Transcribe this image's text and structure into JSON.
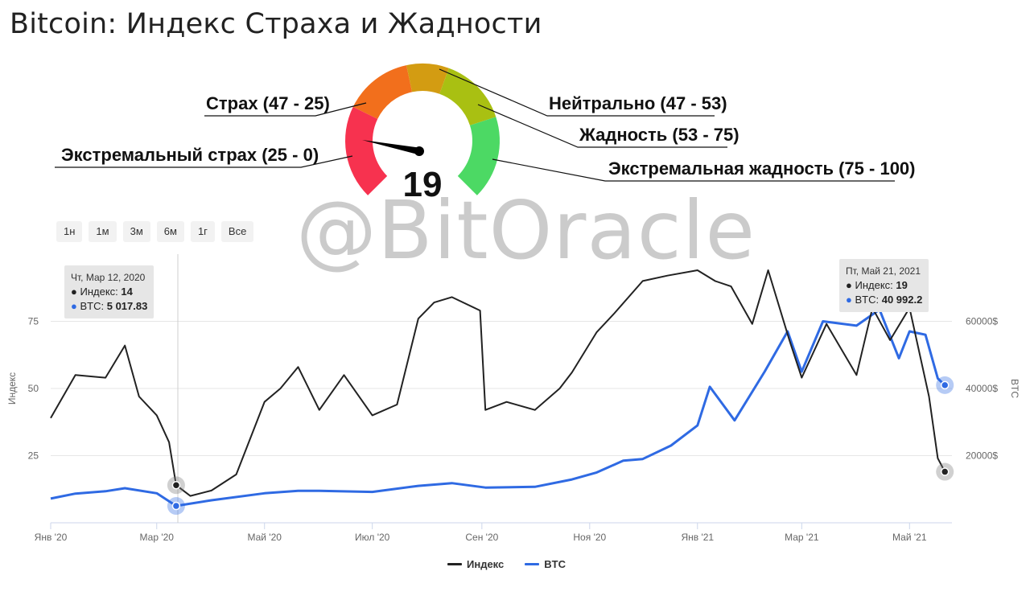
{
  "title": "Bitcoin: Индекс Страха и Жадности",
  "gauge": {
    "value": "19",
    "labels": {
      "fear": "Страх (47 - 25)",
      "extreme_fear": "Экстремальный страх (25 - 0)",
      "neutral": "Нейтрально (47 - 53)",
      "greed": "Жадность (53 - 75)",
      "extreme_greed": "Экстремальная жадность (75 - 100)"
    },
    "colors": {
      "extreme_fear": "#f7324f",
      "fear": "#f26f1c",
      "neutral": "#d39c12",
      "greed": "#a9c012",
      "extreme_greed": "#4cd964"
    }
  },
  "range_buttons": [
    "1н",
    "1м",
    "3м",
    "6м",
    "1г",
    "Все"
  ],
  "watermark": "@BitOracle",
  "tooltips": {
    "left": {
      "date": "Чт, Мар 12, 2020",
      "index_label": "Индекс:",
      "index_value": "14",
      "btc_label": "BTC:",
      "btc_value": "5 017.83"
    },
    "right": {
      "date": "Пт, Май 21, 2021",
      "index_label": "Индекс:",
      "index_value": "19",
      "btc_label": "BTC:",
      "btc_value": "40 992.2"
    }
  },
  "legend": {
    "index": "Индекс",
    "btc": "BTC"
  },
  "colors": {
    "index_line": "#222222",
    "btc_line": "#2f6ae3",
    "grid": "#e6e6e6"
  },
  "chart_data": {
    "type": "line",
    "x_ticks": [
      "Янв '20",
      "Мар '20",
      "Май '20",
      "Июл '20",
      "Сен '20",
      "Ноя '20",
      "Янв '21",
      "Мар '21",
      "Май '21"
    ],
    "y_left": {
      "label": "Индекс",
      "ticks": [
        "25",
        "50",
        "75"
      ],
      "range": [
        0,
        100
      ]
    },
    "y_right": {
      "label": "BTC",
      "ticks": [
        "20000$",
        "40000$",
        "60000$"
      ],
      "range": [
        0,
        80000
      ]
    },
    "series": [
      {
        "name": "Индекс",
        "x": [
          "2020-01-01",
          "2020-01-15",
          "2020-02-01",
          "2020-02-12",
          "2020-02-20",
          "2020-03-01",
          "2020-03-08",
          "2020-03-12",
          "2020-03-20",
          "2020-04-01",
          "2020-04-15",
          "2020-05-01",
          "2020-05-10",
          "2020-05-20",
          "2020-06-01",
          "2020-06-15",
          "2020-07-01",
          "2020-07-15",
          "2020-07-27",
          "2020-08-05",
          "2020-08-15",
          "2020-08-31",
          "2020-09-03",
          "2020-09-15",
          "2020-10-01",
          "2020-10-15",
          "2020-10-22",
          "2020-11-05",
          "2020-11-15",
          "2020-12-01",
          "2020-12-15",
          "2021-01-01",
          "2021-01-11",
          "2021-01-20",
          "2021-02-01",
          "2021-02-10",
          "2021-02-22",
          "2021-03-01",
          "2021-03-15",
          "2021-04-01",
          "2021-04-10",
          "2021-04-20",
          "2021-05-01",
          "2021-05-12",
          "2021-05-17",
          "2021-05-21"
        ],
        "values": [
          39,
          55,
          54,
          66,
          47,
          40,
          30,
          14,
          10,
          12,
          18,
          45,
          50,
          58,
          42,
          55,
          40,
          44,
          76,
          82,
          84,
          79,
          42,
          45,
          42,
          50,
          56,
          71,
          78,
          90,
          92,
          94,
          90,
          88,
          74,
          94,
          68,
          54,
          74,
          55,
          80,
          68,
          80,
          47,
          24,
          19
        ]
      },
      {
        "name": "BTC",
        "x": [
          "2020-01-01",
          "2020-01-15",
          "2020-02-01",
          "2020-02-12",
          "2020-03-01",
          "2020-03-12",
          "2020-04-01",
          "2020-05-01",
          "2020-05-20",
          "2020-06-01",
          "2020-07-01",
          "2020-07-27",
          "2020-08-15",
          "2020-09-03",
          "2020-10-01",
          "2020-10-22",
          "2020-11-05",
          "2020-11-20",
          "2020-12-01",
          "2020-12-17",
          "2021-01-01",
          "2021-01-08",
          "2021-01-22",
          "2021-02-08",
          "2021-02-21",
          "2021-03-01",
          "2021-03-13",
          "2021-04-01",
          "2021-04-14",
          "2021-04-25",
          "2021-05-01",
          "2021-05-10",
          "2021-05-17",
          "2021-05-21"
        ],
        "values": [
          7200,
          8700,
          9400,
          10300,
          8800,
          5018,
          6700,
          8800,
          9500,
          9500,
          9200,
          11000,
          11800,
          10500,
          10700,
          12900,
          15000,
          18500,
          19000,
          23000,
          29000,
          40500,
          30500,
          45000,
          57000,
          45000,
          60000,
          58700,
          63500,
          49000,
          57000,
          56000,
          43000,
          40992
        ]
      }
    ]
  }
}
